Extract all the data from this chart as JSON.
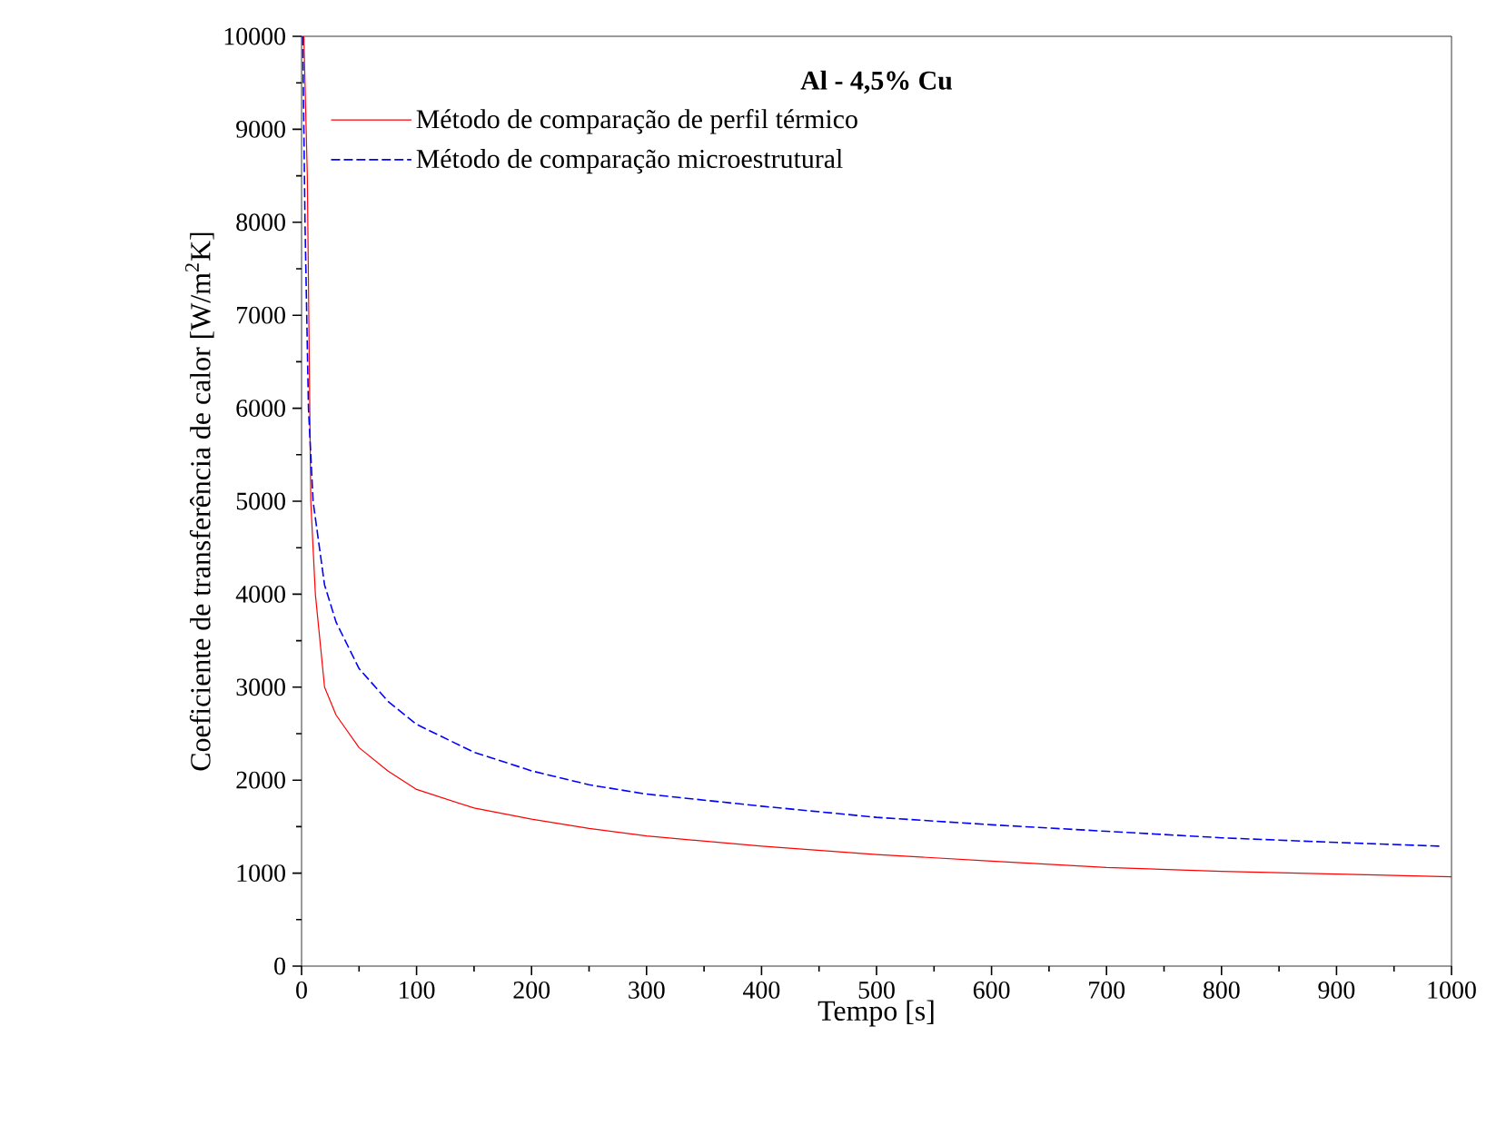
{
  "chart_data": {
    "type": "line",
    "annotations": [
      "**Al - 4,5% Cu**"
    ],
    "xlabel": "Tempo [s]",
    "ylabel": "Coeficiente de transferência de calor [W/m$^{2}$K]",
    "xlim": [
      0,
      1000
    ],
    "ylim": [
      0,
      10000
    ],
    "xticks": [
      0,
      100,
      200,
      300,
      400,
      500,
      600,
      700,
      800,
      900,
      1000
    ],
    "yticks": [
      0,
      1000,
      2000,
      3000,
      4000,
      5000,
      6000,
      7000,
      8000,
      9000,
      10000
    ],
    "grid": false,
    "legend": "top left",
    "series": [
      {
        "name": "Método de comparação de perfil térmico",
        "color": "#ff0000",
        "line_style": "solid",
        "x": [
          2,
          5,
          8,
          12,
          20,
          30,
          50,
          75,
          100,
          150,
          200,
          250,
          300,
          400,
          500,
          600,
          700,
          800,
          900,
          1000
        ],
        "values": [
          10000,
          8500,
          5000,
          4000,
          3000,
          2700,
          2350,
          2100,
          1900,
          1700,
          1580,
          1480,
          1400,
          1290,
          1200,
          1130,
          1060,
          1020,
          990,
          960
        ]
      },
      {
        "name": "Método de comparação microestrutural",
        "color": "#0000ff",
        "line_style": "dashed",
        "x": [
          1,
          3,
          6,
          10,
          20,
          30,
          50,
          75,
          100,
          150,
          200,
          250,
          300,
          400,
          500,
          600,
          700,
          800,
          900,
          990
        ],
        "values": [
          10000,
          8000,
          6000,
          5000,
          4100,
          3700,
          3200,
          2850,
          2600,
          2300,
          2100,
          1950,
          1850,
          1720,
          1600,
          1520,
          1450,
          1380,
          1330,
          1290
        ]
      }
    ]
  }
}
